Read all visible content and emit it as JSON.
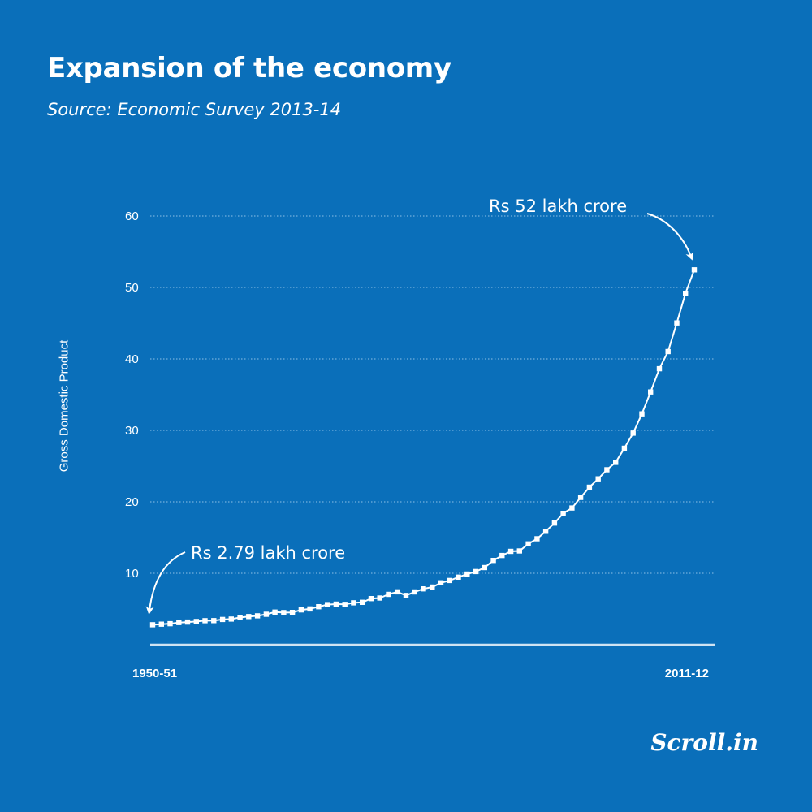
{
  "header": {
    "title": "Expansion of the economy",
    "subtitle": "Source: Economic Survey 2013-14"
  },
  "brand": {
    "logo_text": "Scroll.in"
  },
  "colors": {
    "background": "#0a6fba",
    "foreground": "#ffffff"
  },
  "chart_data": {
    "type": "line",
    "title": "Expansion of the economy",
    "subtitle": "Source: Economic Survey 2013-14",
    "ylabel": "Gross Domestic Product",
    "xlabel": "",
    "x_tick_labels": [
      "1950-51",
      "2011-12"
    ],
    "y_ticks": [
      10,
      20,
      30,
      40,
      50,
      60
    ],
    "ylim": [
      0,
      60
    ],
    "grid": "horizontal dotted",
    "markers": "square",
    "series": [
      {
        "values": [
          2.79,
          2.87,
          2.94,
          3.1,
          3.17,
          3.25,
          3.36,
          3.37,
          3.53,
          3.59,
          3.81,
          3.94,
          4.05,
          4.26,
          4.57,
          4.5,
          4.52,
          4.88,
          5.01,
          5.32,
          5.61,
          5.68,
          5.65,
          5.86,
          5.93,
          6.45,
          6.53,
          7.04,
          7.4,
          6.9,
          7.39,
          7.82,
          8.07,
          8.66,
          8.99,
          9.46,
          9.89,
          10.24,
          10.79,
          11.79,
          12.49,
          13.07,
          13.13,
          14.11,
          14.83,
          15.88,
          17.02,
          18.39,
          19.14,
          20.61,
          22.05,
          23.22,
          24.49,
          25.52,
          27.5,
          29.61,
          32.31,
          35.37,
          38.62,
          41.02,
          45.03,
          49.18,
          52.47
        ]
      }
    ],
    "annotations": [
      {
        "text": "Rs 2.79 lakh crore",
        "point": "first"
      },
      {
        "text": "Rs 52 lakh crore",
        "point": "last"
      }
    ]
  }
}
